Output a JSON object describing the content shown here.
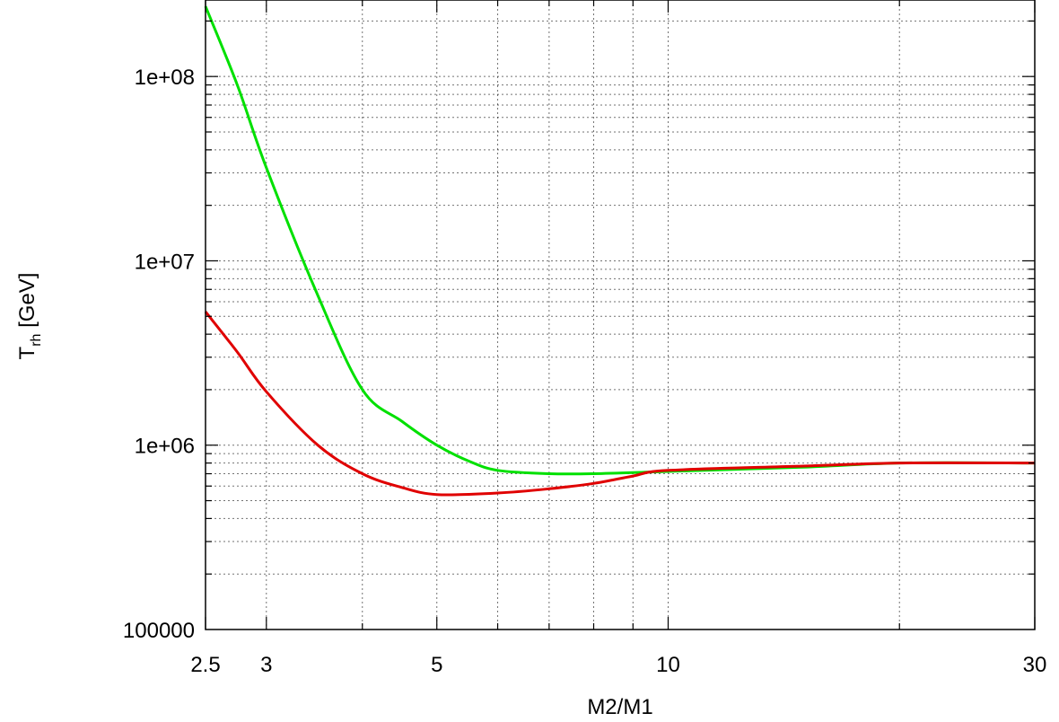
{
  "chart_data": {
    "type": "line",
    "title": "",
    "xlabel": "M2/M1",
    "ylabel_main": "T",
    "ylabel_sub": "rh",
    "ylabel_tail": " [GeV]",
    "xscale": "log",
    "yscale": "log",
    "xlim": [
      2.5,
      30
    ],
    "ylim": [
      100000,
      260000000
    ],
    "grid": true,
    "legend": "none",
    "x_ticks": [
      {
        "value": 2.5,
        "label": "2.5"
      },
      {
        "value": 3,
        "label": "3"
      },
      {
        "value": 5,
        "label": "5"
      },
      {
        "value": 10,
        "label": "10"
      },
      {
        "value": 30,
        "label": "30"
      }
    ],
    "x_minor_gridlines": [
      4,
      6,
      7,
      8,
      9,
      20
    ],
    "y_ticks": [
      {
        "value": 100000,
        "label": "100000"
      },
      {
        "value": 1000000,
        "label": "1e+06"
      },
      {
        "value": 10000000,
        "label": "1e+07"
      },
      {
        "value": 100000000,
        "label": "1e+08"
      }
    ],
    "series": [
      {
        "color": "#00e000",
        "points": [
          [
            2.5,
            240000000
          ],
          [
            2.75,
            90000000
          ],
          [
            3,
            32000000
          ],
          [
            3.5,
            6500000
          ],
          [
            4,
            2000000
          ],
          [
            4.5,
            1350000
          ],
          [
            5,
            1000000
          ],
          [
            5.5,
            820000
          ],
          [
            6,
            730000
          ],
          [
            7,
            700000
          ],
          [
            8,
            700000
          ],
          [
            10,
            720000
          ],
          [
            15,
            760000
          ],
          [
            20,
            800000
          ],
          [
            30,
            800000
          ]
        ]
      },
      {
        "color": "#e00000",
        "points": [
          [
            2.5,
            5300000
          ],
          [
            2.75,
            3200000
          ],
          [
            3,
            1950000
          ],
          [
            3.5,
            1000000
          ],
          [
            4,
            700000
          ],
          [
            4.5,
            590000
          ],
          [
            5,
            540000
          ],
          [
            6,
            550000
          ],
          [
            7,
            580000
          ],
          [
            8,
            620000
          ],
          [
            9,
            680000
          ],
          [
            10,
            730000
          ],
          [
            15,
            770000
          ],
          [
            20,
            800000
          ],
          [
            30,
            800000
          ]
        ]
      }
    ]
  }
}
